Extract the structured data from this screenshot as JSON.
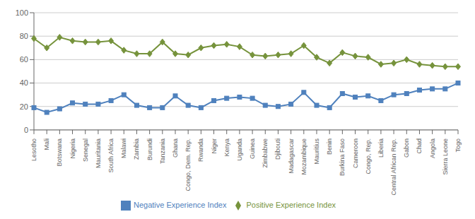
{
  "chart_data": {
    "type": "line",
    "categories": [
      "Lesotho",
      "Mali",
      "Botswana",
      "Nigeria",
      "Senegal",
      "Mauritania",
      "South Africa",
      "Malawi",
      "Zambia",
      "Burundi",
      "Tanzania",
      "Ghana",
      "Congo, Dem. Rep.",
      "Rwanda",
      "Niger",
      "Kenya",
      "Uganda",
      "Guinea",
      "Zimbabwe",
      "Djibouti",
      "Madagascar",
      "Mozambique",
      "Mauritius",
      "Benin",
      "Burkina Faso",
      "Cameroon",
      "Congo, Rep.",
      "Liberia",
      "Central African Rep.",
      "Gabon",
      "Chad",
      "Angola",
      "Sierra Leone",
      "Togo"
    ],
    "series": [
      {
        "name": "Positive Experience Index",
        "color": "#76933c",
        "marker": "diamond",
        "values": [
          78,
          70,
          79,
          76,
          75,
          75,
          76,
          68,
          65,
          65,
          75,
          65,
          64,
          70,
          72,
          73,
          71,
          64,
          63,
          64,
          65,
          72,
          62,
          57,
          66,
          63,
          62,
          56,
          57,
          60,
          56,
          55,
          54,
          54
        ]
      },
      {
        "name": "Negative Experience Index",
        "color": "#4f81bd",
        "marker": "square",
        "values": [
          19,
          15,
          18,
          23,
          22,
          22,
          25,
          30,
          21,
          19,
          19,
          29,
          21,
          19,
          25,
          27,
          28,
          27,
          21,
          20,
          22,
          32,
          21,
          19,
          31,
          28,
          29,
          25,
          30,
          31,
          34,
          35,
          35,
          40
        ]
      }
    ],
    "ylim": [
      0,
      100
    ],
    "yticks": [
      0,
      20,
      40,
      60,
      80,
      100
    ],
    "grid": true,
    "legend": "bottom"
  }
}
